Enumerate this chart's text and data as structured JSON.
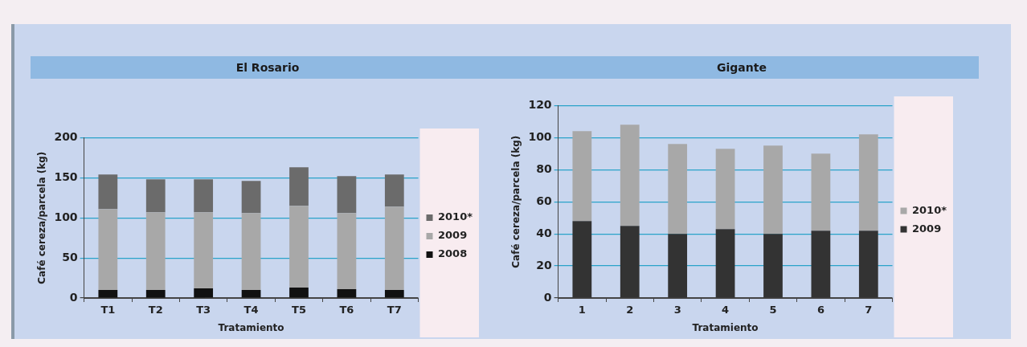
{
  "chart_data": [
    {
      "type": "bar",
      "title": "El Rosario",
      "xlabel": "Tratamiento",
      "ylabel": "Café cereza/parcela (kg)",
      "categories": [
        "T1",
        "T2",
        "T3",
        "T4",
        "T5",
        "T6",
        "T7"
      ],
      "stacked": true,
      "ylim": [
        0,
        200
      ],
      "yticks": [
        0,
        50,
        100,
        150,
        200
      ],
      "grid": "y",
      "legend": "right",
      "series": [
        {
          "name": "2008",
          "color": "#111111",
          "values": [
            10,
            10,
            12,
            10,
            13,
            11,
            10
          ]
        },
        {
          "name": "2009",
          "color": "#a8a8a8",
          "values": [
            101,
            97,
            95,
            96,
            102,
            95,
            104
          ]
        },
        {
          "name": "2010*",
          "color": "#6b6b6b",
          "values": [
            43,
            41,
            41,
            40,
            48,
            46,
            40
          ]
        }
      ]
    },
    {
      "type": "bar",
      "title": "Gigante",
      "xlabel": "Tratamiento",
      "ylabel": "Café cereza/parcela (kg)",
      "categories": [
        "1",
        "2",
        "3",
        "4",
        "5",
        "6",
        "7"
      ],
      "stacked": true,
      "ylim": [
        0,
        120
      ],
      "yticks": [
        0,
        20,
        40,
        60,
        80,
        100,
        120
      ],
      "grid": "y",
      "legend": "right",
      "series": [
        {
          "name": "2009",
          "color": "#333333",
          "values": [
            48,
            45,
            40,
            43,
            40,
            42,
            42
          ]
        },
        {
          "name": "2010*",
          "color": "#a8a8a8",
          "values": [
            56,
            63,
            56,
            50,
            55,
            48,
            60
          ]
        }
      ]
    }
  ]
}
